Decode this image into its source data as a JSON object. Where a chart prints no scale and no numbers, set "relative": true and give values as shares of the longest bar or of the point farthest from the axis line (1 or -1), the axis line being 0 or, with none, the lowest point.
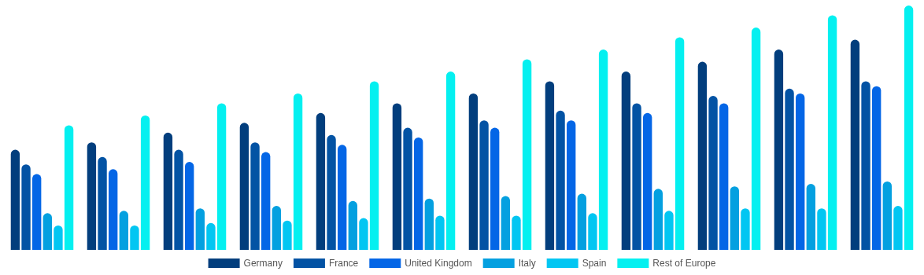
{
  "chart_data": {
    "type": "bar",
    "relative": true,
    "legend": "bottom",
    "categories": [
      null,
      null,
      null,
      null,
      null,
      null,
      null,
      null,
      null,
      null,
      null,
      null
    ],
    "series": [
      {
        "name": "Germany",
        "color": "#023e7d",
        "values": [
          0.41,
          0.44,
          0.48,
          0.52,
          0.56,
          0.6,
          0.64,
          0.69,
          0.73,
          0.77,
          0.82,
          0.86
        ]
      },
      {
        "name": "France",
        "color": "#0353a4",
        "values": [
          0.35,
          0.38,
          0.41,
          0.44,
          0.47,
          0.5,
          0.53,
          0.57,
          0.6,
          0.63,
          0.66,
          0.69
        ]
      },
      {
        "name": "United Kingdom",
        "color": "#0466e6",
        "values": [
          0.31,
          0.33,
          0.36,
          0.4,
          0.43,
          0.46,
          0.5,
          0.53,
          0.56,
          0.6,
          0.64,
          0.67
        ]
      },
      {
        "name": "Italy",
        "color": "#04a0e0",
        "values": [
          0.15,
          0.16,
          0.17,
          0.18,
          0.2,
          0.21,
          0.22,
          0.23,
          0.25,
          0.26,
          0.27,
          0.28
        ]
      },
      {
        "name": "Spain",
        "color": "#02c6f2",
        "values": [
          0.1,
          0.1,
          0.11,
          0.12,
          0.13,
          0.14,
          0.14,
          0.15,
          0.16,
          0.17,
          0.17,
          0.18
        ]
      },
      {
        "name": "Rest of Europe",
        "color": "#04f0f0",
        "values": [
          0.51,
          0.55,
          0.6,
          0.64,
          0.69,
          0.73,
          0.78,
          0.82,
          0.87,
          0.91,
          0.96,
          1
        ]
      }
    ]
  }
}
